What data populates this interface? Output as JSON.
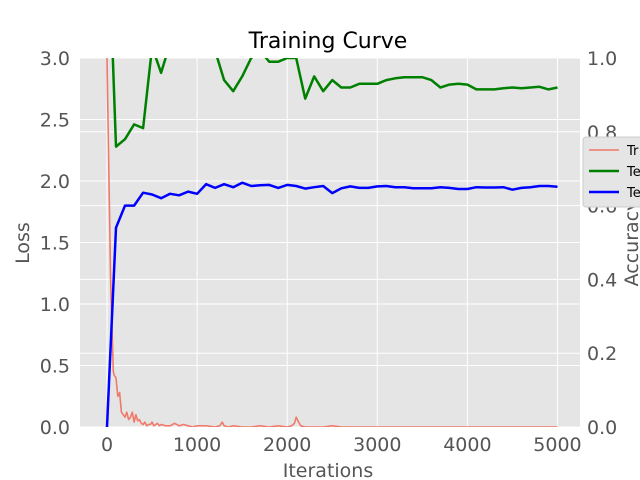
{
  "chart_data": {
    "type": "line",
    "title": "Training Curve",
    "xlabel": "Iterations",
    "ylabel": "Loss",
    "y2label": "Accuracy",
    "xlim": [
      -300,
      5250
    ],
    "ylim": [
      0,
      3.0
    ],
    "y2lim": [
      0,
      1.0
    ],
    "x_ticks": [
      0,
      1000,
      2000,
      3000,
      4000,
      5000
    ],
    "y_ticks": [
      0.0,
      0.5,
      1.0,
      1.5,
      2.0,
      2.5,
      3.0
    ],
    "y2_ticks": [
      0.0,
      0.2,
      0.4,
      0.6,
      0.8,
      1.0
    ],
    "grid": true,
    "legend_position": "right",
    "series": [
      {
        "name": "Tr",
        "axis": "left",
        "color": "#f07a6a",
        "x": [
          0,
          20,
          40,
          60,
          70,
          80,
          100,
          120,
          140,
          160,
          180,
          200,
          220,
          240,
          260,
          280,
          300,
          320,
          340,
          360,
          380,
          400,
          420,
          440,
          460,
          480,
          500,
          520,
          540,
          560,
          580,
          600,
          650,
          700,
          750,
          800,
          850,
          900,
          950,
          1000,
          1100,
          1200,
          1250,
          1280,
          1300,
          1350,
          1400,
          1500,
          1600,
          1700,
          1800,
          1900,
          2000,
          2050,
          2080,
          2100,
          2120,
          2150,
          2200,
          2300,
          2400,
          2500,
          2600,
          2800,
          3000,
          3500,
          4000,
          4500,
          5000
        ],
        "values": [
          3.0,
          2.1,
          1.2,
          0.7,
          0.45,
          0.42,
          0.4,
          0.25,
          0.28,
          0.12,
          0.1,
          0.08,
          0.12,
          0.06,
          0.08,
          0.12,
          0.04,
          0.1,
          0.05,
          0.06,
          0.03,
          0.02,
          0.04,
          0.01,
          0.02,
          0.02,
          0.04,
          0.01,
          0.02,
          0.03,
          0.01,
          0.02,
          0.01,
          0.01,
          0.03,
          0.01,
          0.02,
          0.01,
          0.0,
          0.01,
          0.01,
          0.0,
          0.01,
          0.04,
          0.01,
          0.0,
          0.01,
          0.0,
          0.0,
          0.01,
          0.0,
          0.01,
          0.0,
          0.01,
          0.03,
          0.08,
          0.05,
          0.01,
          0.0,
          0.0,
          0.0,
          0.01,
          0.0,
          0.0,
          0.0,
          0.0,
          0.0,
          0.0,
          0.0
        ]
      },
      {
        "name": "Te",
        "axis": "right",
        "color": "#008000",
        "x": [
          0,
          50,
          100,
          200,
          300,
          400,
          500,
          600,
          700,
          800,
          900,
          1000,
          1100,
          1200,
          1300,
          1400,
          1500,
          1600,
          1700,
          1800,
          1900,
          2000,
          2100,
          2200,
          2300,
          2400,
          2500,
          2600,
          2700,
          2800,
          2900,
          3000,
          3100,
          3200,
          3300,
          3400,
          3500,
          3600,
          3700,
          3800,
          3900,
          4000,
          4100,
          4200,
          4300,
          4400,
          4500,
          4600,
          4700,
          4800,
          4900,
          5000
        ],
        "values": [
          1.2,
          1.1,
          0.76,
          0.78,
          0.82,
          0.81,
          1.03,
          0.96,
          1.04,
          1.1,
          1.12,
          1.08,
          1.05,
          1.02,
          0.94,
          0.91,
          0.95,
          1.0,
          1.02,
          0.99,
          0.99,
          1.0,
          1.0,
          0.89,
          0.95,
          0.91,
          0.94,
          0.92,
          0.92,
          0.93,
          0.93,
          0.93,
          0.94,
          0.945,
          0.948,
          0.948,
          0.948,
          0.94,
          0.92,
          0.928,
          0.93,
          0.928,
          0.915,
          0.915,
          0.915,
          0.918,
          0.92,
          0.918,
          0.92,
          0.922,
          0.915,
          0.92
        ]
      },
      {
        "name": "Te",
        "axis": "right",
        "color": "#0000ff",
        "x": [
          0,
          100,
          200,
          300,
          400,
          500,
          600,
          700,
          800,
          900,
          1000,
          1100,
          1200,
          1300,
          1400,
          1500,
          1600,
          1700,
          1800,
          1900,
          2000,
          2100,
          2200,
          2300,
          2400,
          2500,
          2600,
          2700,
          2800,
          2900,
          3000,
          3100,
          3200,
          3300,
          3400,
          3500,
          3600,
          3700,
          3800,
          3900,
          4000,
          4100,
          4200,
          4300,
          4400,
          4500,
          4600,
          4700,
          4800,
          4900,
          5000
        ],
        "values": [
          0.0,
          0.54,
          0.6,
          0.6,
          0.635,
          0.63,
          0.62,
          0.632,
          0.628,
          0.638,
          0.632,
          0.658,
          0.648,
          0.658,
          0.65,
          0.662,
          0.653,
          0.655,
          0.656,
          0.648,
          0.656,
          0.653,
          0.646,
          0.65,
          0.653,
          0.634,
          0.647,
          0.652,
          0.648,
          0.648,
          0.652,
          0.653,
          0.65,
          0.65,
          0.647,
          0.647,
          0.647,
          0.65,
          0.648,
          0.645,
          0.645,
          0.65,
          0.649,
          0.649,
          0.65,
          0.643,
          0.648,
          0.65,
          0.653,
          0.653,
          0.651
        ]
      }
    ]
  }
}
